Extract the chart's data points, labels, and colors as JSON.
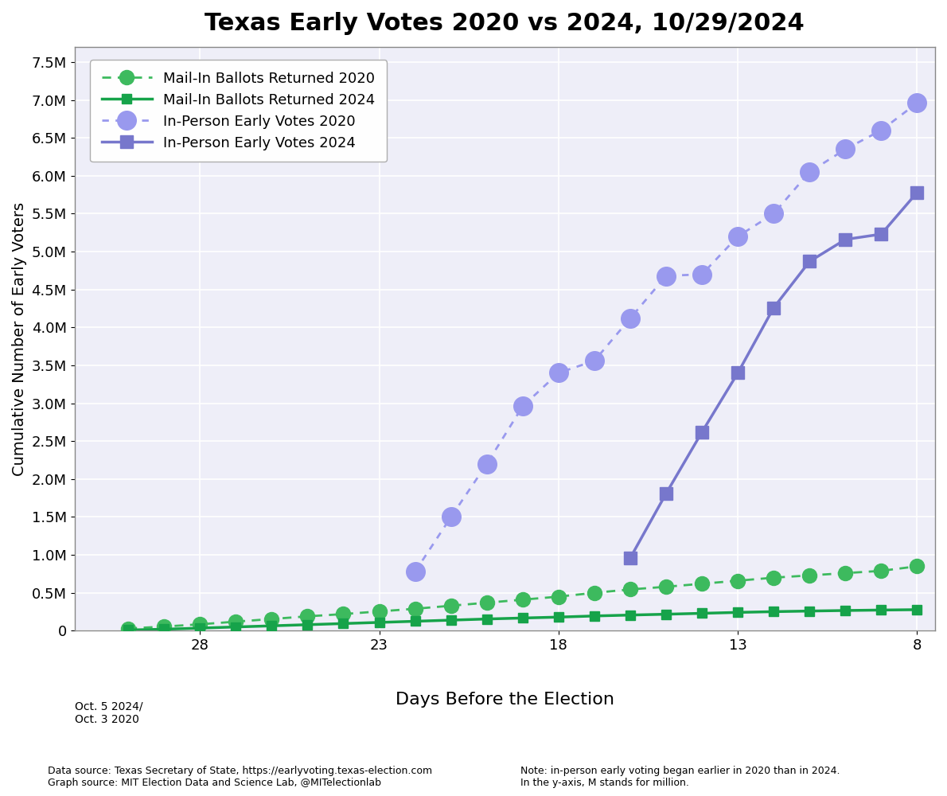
{
  "title": "Texas Early Votes 2020 vs 2024, 10/29/2024",
  "xlabel": "Days Before the Election",
  "ylabel": "Cumulative Number of Early Voters",
  "xlim": [
    31.5,
    7.5
  ],
  "ylim": [
    0,
    7700000
  ],
  "xticks": [
    28,
    23,
    18,
    13,
    8
  ],
  "yticks": [
    0,
    500000,
    1000000,
    1500000,
    2000000,
    2500000,
    3000000,
    3500000,
    4000000,
    4500000,
    5000000,
    5500000,
    6000000,
    6500000,
    7000000,
    7500000
  ],
  "footnote_left": "Data source: Texas Secretary of State, https://earlyvoting.texas-election.com\nGraph source: MIT Election Data and Science Lab, @MITelectionlab",
  "footnote_right": "Note: in-person early voting began earlier in 2020 than in 2024.\nIn the y-axis, M stands for million.",
  "xlabel_annotation": "Oct. 5 2024/\nOct. 3 2020",
  "mail_2020": {
    "days": [
      30,
      29,
      28,
      27,
      26,
      25,
      24,
      23,
      22,
      21,
      20,
      19,
      18,
      17,
      16,
      15,
      14,
      13,
      12,
      11,
      10,
      9,
      8
    ],
    "values": [
      30000,
      55000,
      85000,
      120000,
      155000,
      190000,
      220000,
      255000,
      290000,
      330000,
      370000,
      410000,
      450000,
      500000,
      545000,
      580000,
      620000,
      660000,
      700000,
      730000,
      760000,
      790000,
      850000
    ],
    "color": "#3dba5e",
    "linestyle": "dashed",
    "marker": "o",
    "label": "Mail-In Ballots Returned 2020",
    "linewidth": 2.0,
    "markersize": 13
  },
  "mail_2024": {
    "days": [
      30,
      29,
      28,
      27,
      26,
      25,
      24,
      23,
      22,
      21,
      20,
      19,
      18,
      17,
      16,
      15,
      14,
      13,
      12,
      11,
      10,
      9,
      8
    ],
    "values": [
      10000,
      20000,
      35000,
      50000,
      65000,
      80000,
      95000,
      110000,
      125000,
      140000,
      155000,
      168000,
      180000,
      195000,
      207000,
      218000,
      230000,
      242000,
      252000,
      260000,
      267000,
      273000,
      278000
    ],
    "color": "#16a34a",
    "linestyle": "solid",
    "marker": "s",
    "label": "Mail-In Ballots Returned 2024",
    "linewidth": 2.5,
    "markersize": 9
  },
  "inperson_2020": {
    "days": [
      22,
      21,
      20,
      19,
      18,
      17,
      16,
      15,
      14,
      13,
      12,
      11,
      10,
      9,
      8
    ],
    "values": [
      780000,
      1500000,
      2200000,
      2960000,
      3400000,
      3560000,
      4120000,
      4680000,
      4700000,
      5200000,
      5500000,
      6050000,
      6350000,
      6600000,
      6960000
    ],
    "color": "#9999ee",
    "linestyle": "dotted",
    "marker": "o",
    "label": "In-Person Early Votes 2020",
    "linewidth": 2.0,
    "markersize": 17
  },
  "inperson_2024": {
    "days": [
      16,
      15,
      14,
      13,
      12,
      11,
      10,
      9,
      8
    ],
    "values": [
      960000,
      1810000,
      2620000,
      3400000,
      4260000,
      4870000,
      5160000,
      5230000,
      5780000
    ],
    "color": "#7777cc",
    "linestyle": "solid",
    "marker": "s",
    "label": "In-Person Early Votes 2024",
    "linewidth": 2.5,
    "markersize": 11
  },
  "plot_bg_color": "#eeeef8"
}
